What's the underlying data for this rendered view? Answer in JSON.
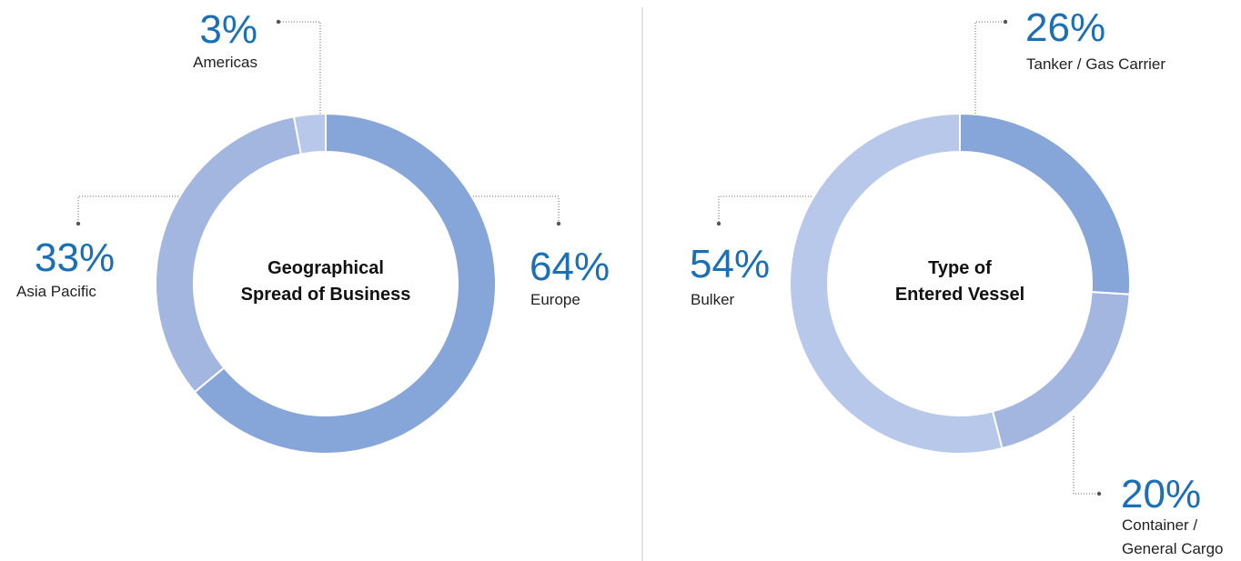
{
  "colors": {
    "dark": "#86a5d8",
    "medium": "#a2b6e0",
    "light": "#b8c8ea",
    "percent_text": "#1a6fb5"
  },
  "chart_data": [
    {
      "type": "pie",
      "donut": true,
      "title": "Geographical Spread of Business",
      "title_lines": [
        "Geographical",
        "Spread of Business"
      ],
      "slices": [
        {
          "label": "Europe",
          "label_lines": [
            "Europe"
          ],
          "value": 64,
          "display": "64%",
          "color": "#86a5d8"
        },
        {
          "label": "Asia Pacific",
          "label_lines": [
            "Asia Pacific"
          ],
          "value": 33,
          "display": "33%",
          "color": "#a2b6e0"
        },
        {
          "label": "Americas",
          "label_lines": [
            "Americas"
          ],
          "value": 3,
          "display": "3%",
          "color": "#b8c8ea"
        }
      ]
    },
    {
      "type": "pie",
      "donut": true,
      "title": "Type of Entered Vessel",
      "title_lines": [
        "Type of",
        "Entered Vessel"
      ],
      "slices": [
        {
          "label": "Tanker / Gas Carrier",
          "label_lines": [
            "Tanker / Gas Carrier"
          ],
          "value": 26,
          "display": "26%",
          "color": "#86a5d8"
        },
        {
          "label": "Container / General Cargo",
          "label_lines": [
            "Container /",
            "General Cargo"
          ],
          "value": 20,
          "display": "20%",
          "color": "#a2b6e0"
        },
        {
          "label": "Bulker",
          "label_lines": [
            "Bulker"
          ],
          "value": 54,
          "display": "54%",
          "color": "#b8c8ea"
        }
      ]
    }
  ]
}
